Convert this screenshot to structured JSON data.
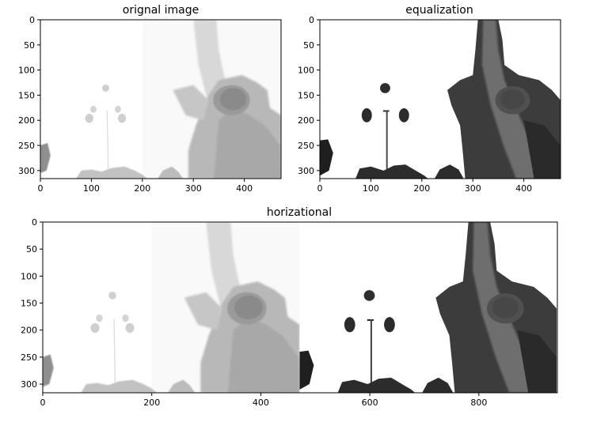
{
  "chart_data": [
    {
      "type": "image",
      "title": "orignal image",
      "xlim": [
        0,
        472
      ],
      "ylim": [
        0,
        316
      ],
      "x_ticks": [
        0,
        100,
        200,
        300,
        400
      ],
      "y_ticks": [
        0,
        50,
        100,
        150,
        200,
        250,
        300
      ],
      "y_inverted": true,
      "content": "grayscale photo"
    },
    {
      "type": "image",
      "title": "equalization",
      "xlim": [
        0,
        472
      ],
      "ylim": [
        0,
        316
      ],
      "x_ticks": [
        0,
        100,
        200,
        300,
        400
      ],
      "y_ticks": [
        0,
        50,
        100,
        150,
        200,
        250,
        300
      ],
      "y_inverted": true,
      "content": "histogram-equalized grayscale photo"
    },
    {
      "type": "image",
      "title": "horizational",
      "xlim": [
        0,
        944
      ],
      "ylim": [
        0,
        316
      ],
      "x_ticks": [
        0,
        200,
        400,
        600,
        800
      ],
      "y_ticks": [
        0,
        50,
        100,
        150,
        200,
        250,
        300
      ],
      "y_inverted": true,
      "content": "original and equalized images concatenated horizontally"
    }
  ]
}
